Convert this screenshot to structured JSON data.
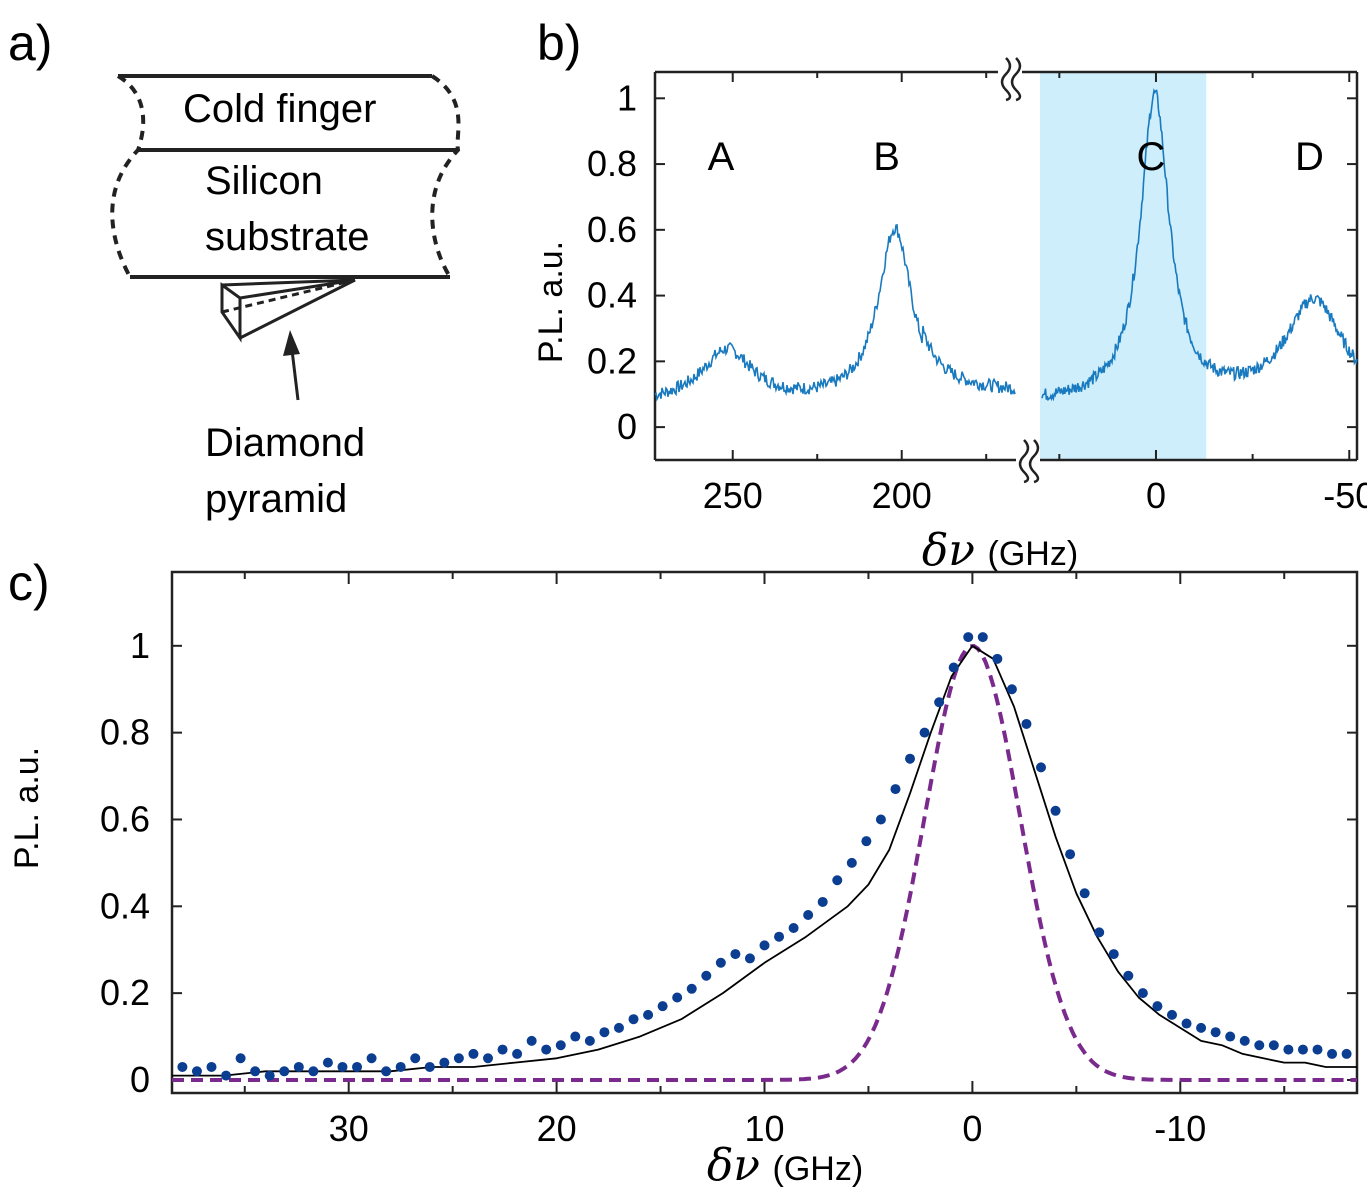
{
  "panel_a": {
    "letter": "a)",
    "cold_finger": "Cold finger",
    "substrate_line1": "Silicon",
    "substrate_line2": "substrate",
    "pyramid_line1": "Diamond",
    "pyramid_line2": "pyramid"
  },
  "panel_b": {
    "letter": "b)"
  },
  "panel_c": {
    "letter": "c)"
  },
  "colors": {
    "spectrum": "#1a7abf",
    "highlight": "#cdeefa",
    "points": "#0b3d91",
    "fit": "#000000",
    "gaussian": "#7a2a8c"
  },
  "chart_data": [
    {
      "type": "line",
      "ylabel": "P.L. a.u.",
      "xlabel_symbol": "δν",
      "xlabel_unit": "(GHz)",
      "x_ticks": [
        "250",
        "200",
        "0",
        "-50"
      ],
      "y_ticks": [
        "0",
        "0.2",
        "0.4",
        "0.6",
        "0.8",
        "1"
      ],
      "ylim": [
        -0.1,
        1.08
      ],
      "broken_axis": true,
      "segment_left_xlim": [
        273,
        165
      ],
      "segment_right_xlim": [
        30,
        -52
      ],
      "highlight_band": [
        30,
        -13
      ],
      "peak_labels": [
        "A",
        "B",
        "C",
        "D"
      ],
      "peaks": [
        {
          "label": "A",
          "center": 252,
          "height": 0.23
        },
        {
          "label": "B",
          "center": 203,
          "height": 0.6
        },
        {
          "label": "C",
          "center": 0,
          "height": 1.0
        },
        {
          "label": "D",
          "center": -41,
          "height": 0.38
        }
      ]
    },
    {
      "type": "scatter",
      "ylabel": "P.L. a.u.",
      "xlabel_symbol": "δν",
      "xlabel_unit": "(GHz)",
      "x_ticks": [
        "30",
        "20",
        "10",
        "0",
        "-10"
      ],
      "y_ticks": [
        "0",
        "0.2",
        "0.4",
        "0.6",
        "0.8",
        "1"
      ],
      "xlim": [
        38.5,
        -18.5
      ],
      "ylim": [
        -0.03,
        1.17
      ],
      "series": [
        {
          "kind": "points",
          "x": [
            38.0,
            37.3,
            36.6,
            35.9,
            35.2,
            34.5,
            33.8,
            33.1,
            32.4,
            31.7,
            31.0,
            30.3,
            29.6,
            28.9,
            28.2,
            27.5,
            26.8,
            26.1,
            25.4,
            24.7,
            24.0,
            23.3,
            22.6,
            21.9,
            21.2,
            20.5,
            19.8,
            19.1,
            18.4,
            17.7,
            17.0,
            16.3,
            15.6,
            14.9,
            14.2,
            13.5,
            12.8,
            12.1,
            11.4,
            10.7,
            10.0,
            9.3,
            8.6,
            7.9,
            7.2,
            6.5,
            5.8,
            5.1,
            4.4,
            3.7,
            3.0,
            2.3,
            1.6,
            0.9,
            0.2,
            -0.5,
            -1.2,
            -1.9,
            -2.6,
            -3.3,
            -4.0,
            -4.7,
            -5.4,
            -6.1,
            -6.8,
            -7.5,
            -8.2,
            -8.9,
            -9.6,
            -10.3,
            -11.0,
            -11.7,
            -12.4,
            -13.1,
            -13.8,
            -14.5,
            -15.2,
            -15.9,
            -16.6,
            -17.3,
            -18.0
          ],
          "y": [
            0.03,
            0.02,
            0.03,
            0.01,
            0.05,
            0.02,
            0.01,
            0.02,
            0.03,
            0.02,
            0.04,
            0.03,
            0.03,
            0.05,
            0.02,
            0.03,
            0.05,
            0.03,
            0.04,
            0.05,
            0.06,
            0.05,
            0.07,
            0.06,
            0.09,
            0.07,
            0.08,
            0.1,
            0.09,
            0.11,
            0.12,
            0.14,
            0.15,
            0.17,
            0.19,
            0.21,
            0.24,
            0.27,
            0.29,
            0.28,
            0.31,
            0.33,
            0.35,
            0.38,
            0.41,
            0.46,
            0.5,
            0.55,
            0.6,
            0.67,
            0.74,
            0.8,
            0.87,
            0.95,
            1.02,
            1.02,
            0.97,
            0.9,
            0.82,
            0.72,
            0.62,
            0.52,
            0.43,
            0.34,
            0.29,
            0.24,
            0.2,
            0.17,
            0.15,
            0.13,
            0.12,
            0.11,
            0.1,
            0.09,
            0.08,
            0.08,
            0.07,
            0.07,
            0.07,
            0.06,
            0.06
          ]
        },
        {
          "kind": "fit",
          "x": [
            38.5,
            36,
            34,
            32,
            30,
            28,
            26,
            24,
            22,
            20,
            18,
            16,
            14,
            12,
            10,
            8,
            6,
            5,
            4,
            3,
            2,
            1,
            0,
            -1,
            -2,
            -3,
            -4,
            -5,
            -6,
            -7,
            -8,
            -9,
            -10,
            -11,
            -12,
            -13,
            -14,
            -15,
            -16,
            -17,
            -18.5
          ],
          "y": [
            0.01,
            0.01,
            0.02,
            0.02,
            0.02,
            0.02,
            0.03,
            0.03,
            0.04,
            0.05,
            0.07,
            0.1,
            0.14,
            0.2,
            0.27,
            0.33,
            0.4,
            0.45,
            0.53,
            0.66,
            0.8,
            0.93,
            1.0,
            0.97,
            0.86,
            0.71,
            0.56,
            0.43,
            0.33,
            0.25,
            0.19,
            0.15,
            0.12,
            0.09,
            0.08,
            0.06,
            0.05,
            0.04,
            0.04,
            0.03,
            0.03
          ]
        },
        {
          "kind": "gaussian",
          "center": 0,
          "height": 1.0,
          "fwhm": 5.4
        }
      ]
    }
  ]
}
